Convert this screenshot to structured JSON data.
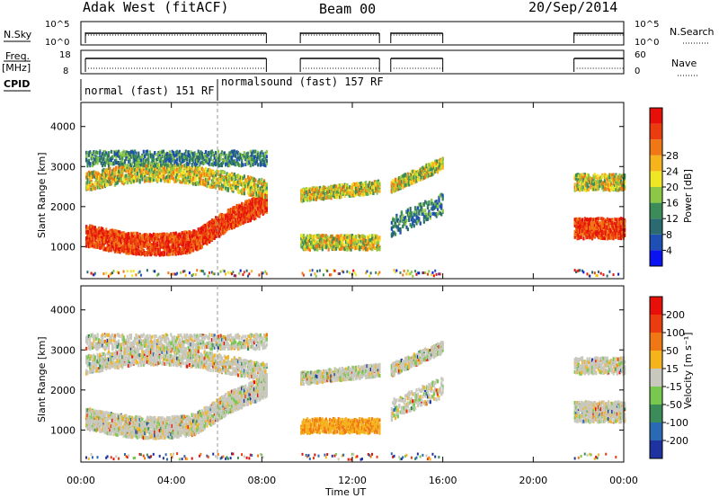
{
  "header": {
    "radar": "Adak West (fitACF)",
    "beam": "Beam 00",
    "date": "20/Sep/2014"
  },
  "top_panels": {
    "nsky_label": "N.Sky",
    "nsearch_label": "N.Search",
    "nsky_ticks": [
      "10^5",
      "10^0"
    ],
    "nsearch_ticks": [
      "10^5",
      "10^0"
    ],
    "freq_label": "Freq.",
    "freq_unit": "[MHz]",
    "freq_ticks": [
      "18",
      "8"
    ],
    "nave_label": "Nave",
    "nave_ticks": [
      "60",
      "0"
    ],
    "cpid_label": "CPID",
    "cpid_modes": [
      {
        "name": "normal (fast) 151 RF"
      },
      {
        "name": "normalsound (fast) 157 RF"
      }
    ]
  },
  "chart_data": [
    {
      "type": "heatmap",
      "title": "",
      "xlabel": "",
      "ylabel": "Slant Range [km]",
      "ylim": [
        200,
        4600
      ],
      "yticks": [
        "1000",
        "2000",
        "3000",
        "4000"
      ],
      "xlim_hours": [
        0,
        24
      ],
      "colorbar": {
        "label": "Power [dB]",
        "ticks": [
          "4",
          "8",
          "12",
          "16",
          "20",
          "24",
          "28"
        ],
        "colors": [
          "#0a14f0",
          "#1e4fb4",
          "#2a6a70",
          "#3c8c5a",
          "#8cc846",
          "#f0e628",
          "#f5b41e",
          "#f07814",
          "#eb3c0f",
          "#e60f0a"
        ]
      },
      "echo_segments_hours": [
        [
          0.2,
          8.2
        ],
        [
          9.7,
          13.2
        ],
        [
          13.7,
          16.0
        ],
        [
          21.8,
          24.0
        ]
      ]
    },
    {
      "type": "heatmap",
      "title": "",
      "xlabel": "Time UT",
      "ylabel": "Slant Range [km]",
      "ylim": [
        200,
        4600
      ],
      "yticks": [
        "1000",
        "2000",
        "3000",
        "4000"
      ],
      "xticks": [
        "00:00",
        "04:00",
        "08:00",
        "12:00",
        "16:00",
        "20:00",
        "00:00"
      ],
      "colorbar": {
        "label": "Velocity [m s⁻¹]",
        "ticks": [
          "200",
          "100",
          "50",
          "15",
          "-15",
          "-50",
          "-100",
          "-200"
        ],
        "colors": [
          "#1e32a0",
          "#2a6ab4",
          "#3c8c5a",
          "#78c850",
          "#c8c8be",
          "#f5b41e",
          "#f07814",
          "#eb3c0f",
          "#e60f0a"
        ]
      },
      "echo_segments_hours": [
        [
          0.2,
          8.2
        ],
        [
          9.7,
          13.2
        ],
        [
          13.7,
          16.0
        ],
        [
          21.8,
          24.0
        ]
      ]
    }
  ]
}
